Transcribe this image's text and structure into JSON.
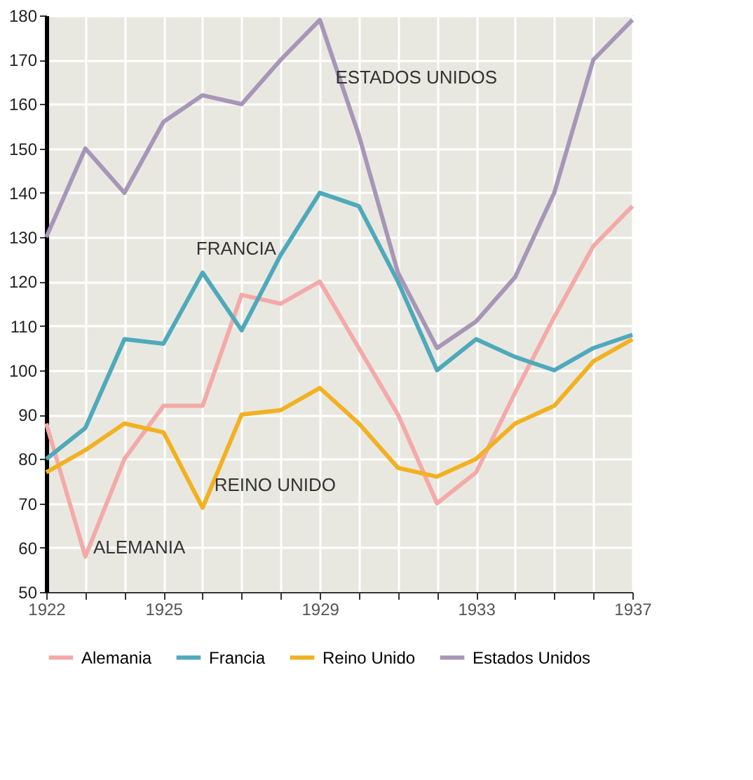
{
  "chart_data": {
    "type": "line",
    "x": [
      1922,
      1923,
      1924,
      1925,
      1926,
      1927,
      1928,
      1929,
      1930,
      1931,
      1932,
      1933,
      1934,
      1935,
      1936,
      1937
    ],
    "series": [
      {
        "name": "Alemania",
        "color": "#f4aaa8",
        "values": [
          88,
          58,
          80,
          92,
          92,
          117,
          115,
          120,
          105,
          90,
          70,
          77,
          95,
          112,
          128,
          137
        ]
      },
      {
        "name": "Francia",
        "color": "#4fa9bb",
        "values": [
          80,
          87,
          107,
          106,
          122,
          109,
          126,
          140,
          137,
          120,
          100,
          107,
          103,
          100,
          105,
          108
        ]
      },
      {
        "name": "Reino Unido",
        "color": "#f2b122",
        "values": [
          77,
          82,
          88,
          86,
          69,
          90,
          91,
          96,
          88,
          78,
          76,
          80,
          88,
          92,
          102,
          107
        ]
      },
      {
        "name": "Estados Unidos",
        "color": "#a796b8",
        "values": [
          130,
          150,
          140,
          156,
          162,
          160,
          170,
          179,
          153,
          122,
          105,
          111,
          121,
          140,
          170,
          179
        ]
      }
    ],
    "annotations": [
      {
        "text": "ALEMANIA",
        "x": 1923.2,
        "y": 60
      },
      {
        "text": "FRANCIA",
        "x": 1928.1,
        "y": 127.4
      },
      {
        "text": "REINO UNIDO",
        "x": 1926.3,
        "y": 74
      },
      {
        "text": "ESTADOS UNIDOS",
        "x": 1929.4,
        "y": 166
      }
    ],
    "xlim": [
      1922,
      1937
    ],
    "xticks": [
      1922,
      {
        "value": 1923,
        "label": null
      },
      {
        "value": 1924,
        "label": null
      },
      1925,
      {
        "value": 1926,
        "label": null
      },
      {
        "value": 1927,
        "label": null
      },
      {
        "value": 1928,
        "label": null
      },
      1929,
      {
        "value": 1930,
        "label": null
      },
      {
        "value": 1931,
        "label": null
      },
      {
        "value": 1932,
        "label": null
      },
      1933,
      {
        "value": 1934,
        "label": null
      },
      {
        "value": 1935,
        "label": null
      },
      {
        "value": 1936,
        "label": null
      },
      1937
    ],
    "ylim": [
      50,
      180
    ],
    "yticks": [
      50,
      60,
      70,
      80,
      90,
      100,
      110,
      120,
      130,
      140,
      150,
      160,
      170,
      180
    ],
    "grid": true,
    "legend": "bottom",
    "marker": "none",
    "line_style": "solid"
  }
}
